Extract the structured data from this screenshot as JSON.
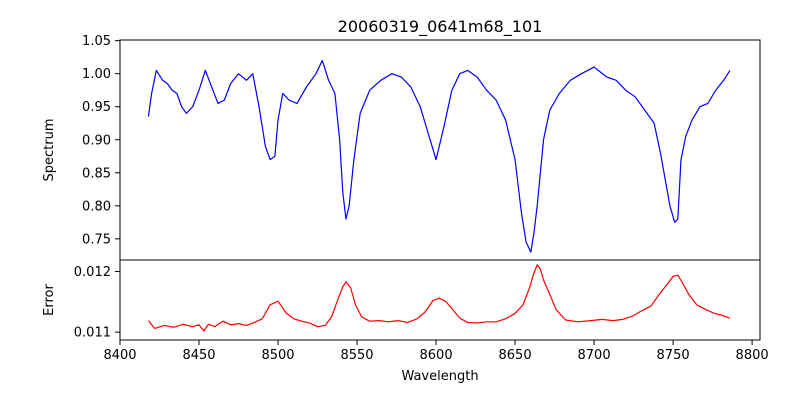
{
  "chart_data": {
    "type": "line",
    "title": "20060319_0641m68_101",
    "xlabel": "Wavelength",
    "xlim": [
      8400,
      8805
    ],
    "xticks": [
      "8400",
      "8450",
      "8500",
      "8550",
      "8600",
      "8650",
      "8700",
      "8750",
      "8800"
    ],
    "panels": [
      {
        "name": "spectrum",
        "ylabel": "Spectrum",
        "ylim": [
          0.718,
          1.051
        ],
        "yticks": [
          "0.75",
          "0.80",
          "0.85",
          "0.90",
          "0.95",
          "1.00",
          "1.05"
        ],
        "color": "#0000ff",
        "series": {
          "name": "Spectrum",
          "x": [
            8418,
            8420,
            8423,
            8427,
            8430,
            8433,
            8436,
            8439,
            8442,
            8446,
            8450,
            8454,
            8458,
            8462,
            8466,
            8470,
            8475,
            8480,
            8484,
            8488,
            8492,
            8495,
            8498,
            8500,
            8503,
            8507,
            8512,
            8518,
            8524,
            8528,
            8532,
            8536,
            8539,
            8541,
            8543,
            8545,
            8548,
            8552,
            8558,
            8565,
            8572,
            8578,
            8584,
            8590,
            8595,
            8600,
            8605,
            8610,
            8615,
            8620,
            8626,
            8632,
            8638,
            8644,
            8650,
            8654,
            8657,
            8660,
            8662,
            8664,
            8666,
            8668,
            8672,
            8678,
            8685,
            8692,
            8700,
            8708,
            8714,
            8720,
            8726,
            8732,
            8738,
            8742,
            8745,
            8748,
            8751,
            8753,
            8755,
            8758,
            8762,
            8767,
            8772,
            8777,
            8782,
            8786
          ],
          "values": [
            0.935,
            0.97,
            1.005,
            0.99,
            0.985,
            0.975,
            0.97,
            0.95,
            0.94,
            0.95,
            0.975,
            1.005,
            0.98,
            0.955,
            0.96,
            0.985,
            1.0,
            0.99,
            1.0,
            0.95,
            0.89,
            0.87,
            0.875,
            0.93,
            0.97,
            0.96,
            0.955,
            0.98,
            1.0,
            1.02,
            0.99,
            0.97,
            0.9,
            0.82,
            0.78,
            0.8,
            0.87,
            0.94,
            0.975,
            0.99,
            1.0,
            0.995,
            0.98,
            0.95,
            0.91,
            0.87,
            0.92,
            0.975,
            1.0,
            1.005,
            0.995,
            0.975,
            0.96,
            0.93,
            0.87,
            0.79,
            0.745,
            0.73,
            0.76,
            0.8,
            0.85,
            0.9,
            0.945,
            0.97,
            0.99,
            1.0,
            1.01,
            0.995,
            0.99,
            0.975,
            0.965,
            0.945,
            0.925,
            0.88,
            0.84,
            0.8,
            0.775,
            0.78,
            0.87,
            0.905,
            0.93,
            0.95,
            0.955,
            0.975,
            0.99,
            1.005
          ]
        }
      },
      {
        "name": "error",
        "ylabel": "Error",
        "ylim": [
          0.01087,
          0.01219
        ],
        "yticks": [
          "0.011",
          "0.012"
        ],
        "color": "#ff0000",
        "series": {
          "name": "Error",
          "x": [
            8418,
            8422,
            8428,
            8434,
            8440,
            8446,
            8450,
            8453,
            8456,
            8460,
            8465,
            8470,
            8475,
            8480,
            8485,
            8490,
            8495,
            8500,
            8505,
            8510,
            8515,
            8520,
            8525,
            8530,
            8534,
            8538,
            8541,
            8543,
            8546,
            8549,
            8553,
            8558,
            8564,
            8570,
            8576,
            8582,
            8588,
            8593,
            8598,
            8602,
            8606,
            8610,
            8615,
            8620,
            8626,
            8632,
            8638,
            8644,
            8650,
            8655,
            8659,
            8662,
            8664,
            8666,
            8668,
            8672,
            8676,
            8682,
            8690,
            8698,
            8705,
            8712,
            8718,
            8724,
            8730,
            8736,
            8742,
            8746,
            8750,
            8753,
            8756,
            8760,
            8765,
            8770,
            8776,
            8782,
            8786
          ],
          "values": [
            0.01119,
            0.01106,
            0.01111,
            0.01108,
            0.01113,
            0.01109,
            0.01112,
            0.01102,
            0.01113,
            0.01109,
            0.01118,
            0.01112,
            0.01114,
            0.01111,
            0.01116,
            0.01122,
            0.01145,
            0.01151,
            0.01132,
            0.01122,
            0.01118,
            0.01115,
            0.01109,
            0.01111,
            0.01126,
            0.01155,
            0.01175,
            0.01183,
            0.01173,
            0.01145,
            0.01125,
            0.01118,
            0.01119,
            0.01117,
            0.01119,
            0.01116,
            0.01122,
            0.01133,
            0.01152,
            0.01156,
            0.01151,
            0.01139,
            0.01123,
            0.01116,
            0.01115,
            0.01117,
            0.01117,
            0.01122,
            0.01131,
            0.01145,
            0.01172,
            0.01198,
            0.01211,
            0.01204,
            0.01186,
            0.01162,
            0.01137,
            0.0112,
            0.01117,
            0.01119,
            0.01121,
            0.01119,
            0.01121,
            0.01126,
            0.01135,
            0.01143,
            0.01165,
            0.01178,
            0.01192,
            0.01194,
            0.01181,
            0.01162,
            0.01145,
            0.01138,
            0.01131,
            0.01127,
            0.01123
          ]
        }
      }
    ]
  }
}
